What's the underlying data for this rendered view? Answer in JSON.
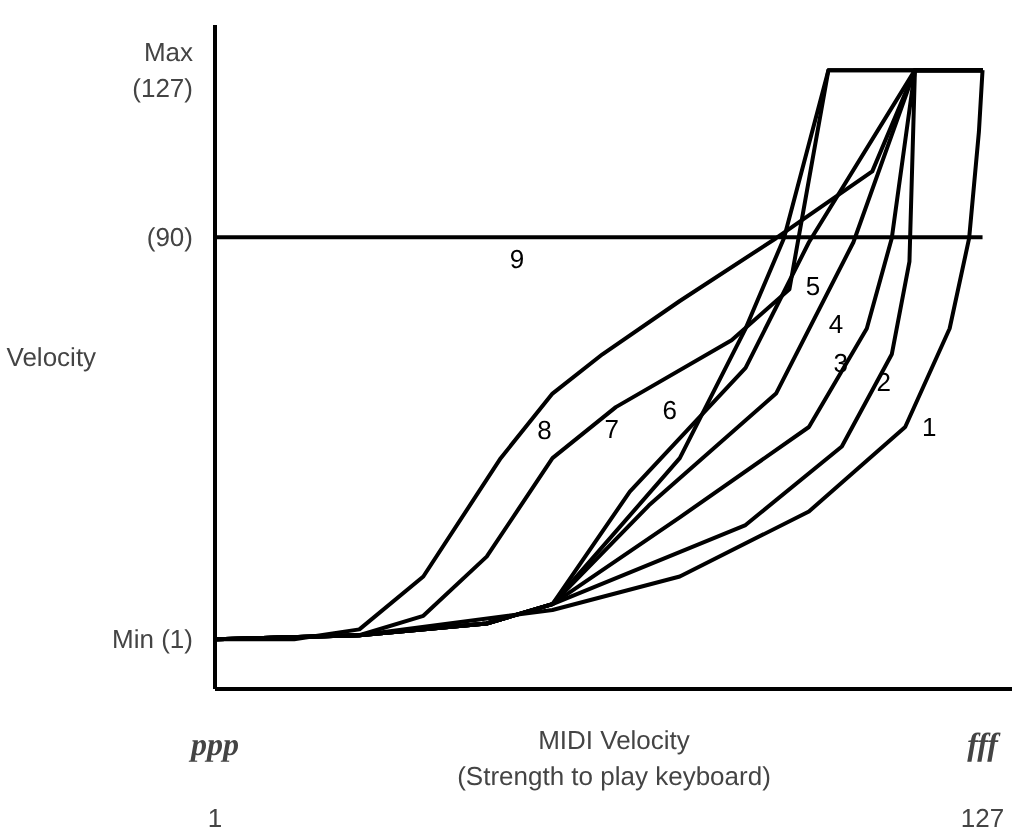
{
  "chart_data": {
    "type": "line",
    "xlabel": "MIDI Velocity\n(Strength to play keyboard)",
    "ylabel": "Velocity",
    "xlim": [
      1,
      132
    ],
    "ylim": [
      -10,
      137
    ],
    "xticks": [
      1,
      127
    ],
    "yticks": [
      {
        "value": 1,
        "label": "Min (1)"
      },
      {
        "value": 90,
        "label": "(90)"
      },
      {
        "value": 127,
        "label": "Max\n(127)"
      }
    ],
    "grid": false,
    "legend": false,
    "marker": "none",
    "line_style": "solid",
    "series": [
      {
        "name": "1",
        "color": "#000000",
        "x": [
          1,
          24.7,
          56.4,
          77.3,
          98.5,
          114.3,
          121.6,
          124.8,
          126.4,
          127
        ],
        "values": [
          1,
          1.9,
          7.5,
          14.9,
          29.3,
          48,
          69.8,
          89.8,
          113.3,
          127
        ]
      },
      {
        "name": "2",
        "color": "#000000",
        "x": [
          1,
          24.7,
          45.6,
          56.4,
          88.1,
          103.9,
          112.1,
          115.0,
          115.9,
          127
        ],
        "values": [
          1,
          1.9,
          4.5,
          8.8,
          26.3,
          43.7,
          64.1,
          84.6,
          127,
          127
        ]
      },
      {
        "name": "3",
        "color": "#000000",
        "x": [
          1,
          24.7,
          45.6,
          56.4,
          77.3,
          98.5,
          108.0,
          112.1,
          115.9,
          127
        ],
        "values": [
          1,
          1.9,
          4.5,
          8.8,
          28.0,
          48.0,
          69.8,
          89.8,
          127,
          127
        ]
      },
      {
        "name": "4",
        "color": "#000000",
        "x": [
          1,
          24.7,
          45.6,
          56.4,
          72.2,
          93.1,
          105.8,
          115.9,
          127
        ],
        "values": [
          1,
          1.9,
          4.5,
          8.8,
          30.6,
          55.4,
          88.9,
          127,
          127
        ]
      },
      {
        "name": "5",
        "color": "#000000",
        "x": [
          1,
          24.7,
          45.6,
          56.4,
          69.1,
          88.1,
          98.5,
          115.9,
          127
        ],
        "values": [
          1,
          1.9,
          4.5,
          8.8,
          33.7,
          61.1,
          88.9,
          127,
          127
        ]
      },
      {
        "name": "6",
        "color": "#000000",
        "x": [
          1,
          24.7,
          45.6,
          56.4,
          77.3,
          88.1,
          94.4,
          101.7,
          127
        ],
        "values": [
          1,
          1.9,
          4.5,
          8.8,
          41.1,
          69.8,
          89.8,
          127,
          127
        ]
      },
      {
        "name": "7",
        "color": "#000000",
        "x": [
          1,
          24.7,
          35.2,
          45.6,
          56.4,
          66.8,
          85.8,
          95.3,
          101.7,
          127
        ],
        "values": [
          1,
          1.9,
          6.2,
          19.3,
          41.1,
          52.4,
          67.2,
          78.5,
          127,
          127
        ]
      },
      {
        "name": "8",
        "color": "#000000",
        "x": [
          1,
          14.0,
          24.7,
          35.2,
          47.9,
          56.4,
          64.6,
          77.3,
          93.1,
          108.9,
          115.9,
          127
        ],
        "values": [
          1,
          1,
          3.2,
          14.9,
          41.1,
          55.4,
          64.1,
          75.9,
          89.8,
          104.6,
          127,
          127
        ]
      },
      {
        "name": "9",
        "color": "#000000",
        "x": [
          1,
          127
        ],
        "values": [
          90,
          90
        ]
      }
    ],
    "annotations": [
      "ppp",
      "fff"
    ]
  }
}
